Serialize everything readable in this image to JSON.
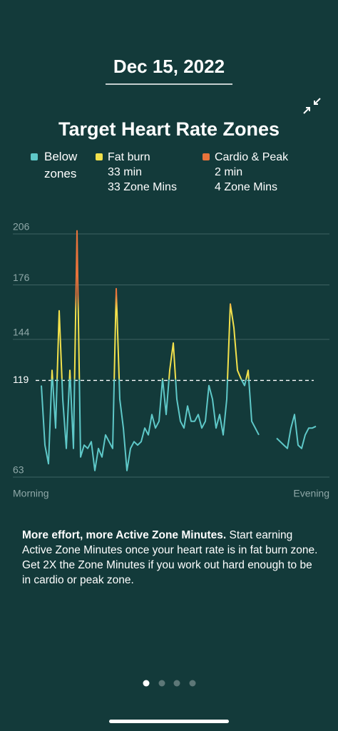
{
  "header": {
    "date": "Dec 15, 2022"
  },
  "chart_data": {
    "type": "line",
    "title": "Target Heart Rate Zones",
    "zones": [
      {
        "name": "Below zones",
        "color": "#5ec8c8"
      },
      {
        "name": "Fat burn",
        "color": "#f2e14c",
        "details": [
          "33 min",
          "33 Zone Mins"
        ]
      },
      {
        "name": "Cardio & Peak",
        "color": "#e8733b",
        "details": [
          "2 min",
          "4 Zone Mins"
        ]
      }
    ],
    "x_labels": [
      "Morning",
      "Evening"
    ],
    "values": [
      116,
      81,
      70,
      125,
      91,
      160,
      108,
      79,
      125,
      79,
      207,
      74,
      81,
      79,
      83,
      66,
      79,
      74,
      87,
      83,
      79,
      173,
      108,
      91,
      66,
      79,
      83,
      81,
      83,
      91,
      87,
      99,
      91,
      95,
      120,
      99,
      125,
      141,
      108,
      95,
      91,
      104,
      95,
      95,
      99,
      91,
      95,
      116,
      108,
      91,
      99,
      87,
      108,
      164,
      150,
      125,
      120,
      116,
      125,
      95,
      91,
      87,
      null,
      null,
      null,
      null,
      85,
      83,
      81,
      79,
      91,
      99,
      81,
      79,
      87,
      91,
      91,
      92
    ],
    "ylim": [
      63,
      206
    ],
    "yticks": [
      63,
      144,
      176,
      206
    ],
    "threshold": 119,
    "grid": true
  },
  "description": {
    "bold": "More effort, more Active Zone Minutes.",
    "text": "Start earning Active Zone Minutes once your heart rate is in fat burn zone. Get 2X the Zone Minutes if you work out hard enough to be in cardio or peak zone."
  }
}
